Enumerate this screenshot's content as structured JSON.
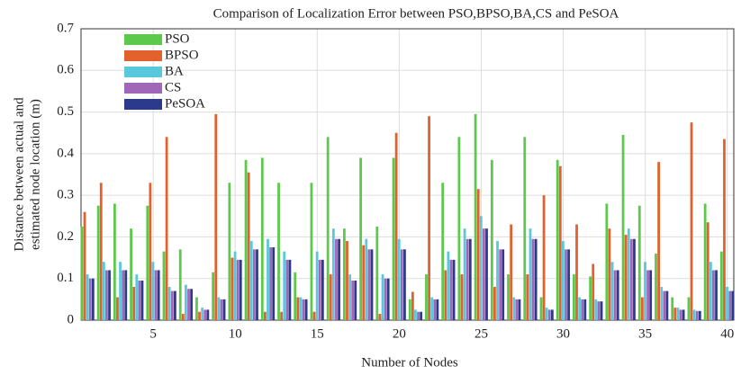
{
  "chart_data": {
    "type": "bar",
    "title": "Comparison of Localization Error between PSO,BPSO,BA,CS and PeSOA",
    "xlabel": "Number of Nodes",
    "ylabel": [
      "Distance between actual and",
      "estimated node location (m)"
    ],
    "x": [
      1,
      2,
      3,
      4,
      5,
      6,
      7,
      8,
      9,
      10,
      11,
      12,
      13,
      14,
      15,
      16,
      17,
      18,
      19,
      20,
      21,
      22,
      23,
      24,
      25,
      26,
      27,
      28,
      29,
      30,
      31,
      32,
      33,
      34,
      35,
      36,
      37,
      38,
      39,
      40
    ],
    "xlim": [
      0.6,
      40.4
    ],
    "xticks": [
      5,
      10,
      15,
      20,
      25,
      30,
      35,
      40
    ],
    "ylim": [
      0,
      0.7
    ],
    "yticks": [
      0,
      0.1,
      0.2,
      0.3,
      0.4,
      0.5,
      0.6,
      0.7
    ],
    "grid": true,
    "legend": "upper left",
    "series": [
      {
        "name": "PSO",
        "color": "#5cc84c",
        "values": [
          0.225,
          0.275,
          0.28,
          0.22,
          0.275,
          0.165,
          0.17,
          0.055,
          0.115,
          0.33,
          0.385,
          0.39,
          0.33,
          0.115,
          0.33,
          0.44,
          0.22,
          0.39,
          0.225,
          0.39,
          0.05,
          0.11,
          0.33,
          0.44,
          0.495,
          0.385,
          0.11,
          0.44,
          0.055,
          0.385,
          0.11,
          0.105,
          0.28,
          0.445,
          0.275,
          0.16,
          0.055,
          0.055,
          0.28,
          0.165
        ]
      },
      {
        "name": "BPSO",
        "color": "#e2612c",
        "values": [
          0.26,
          0.33,
          0.055,
          0.08,
          0.33,
          0.44,
          0.015,
          0.02,
          0.495,
          0.15,
          0.355,
          0.02,
          0.02,
          0.055,
          0.02,
          0.11,
          0.19,
          0.18,
          0.015,
          0.45,
          0.068,
          0.49,
          0.12,
          0.11,
          0.315,
          0.08,
          0.23,
          0.11,
          0.3,
          0.37,
          0.23,
          0.135,
          0.22,
          0.205,
          0.055,
          0.38,
          0.03,
          0.475,
          0.235,
          0.435
        ]
      },
      {
        "name": "BA",
        "color": "#5ac8dc",
        "values": [
          0.11,
          0.14,
          0.14,
          0.11,
          0.14,
          0.08,
          0.085,
          0.03,
          0.055,
          0.165,
          0.19,
          0.195,
          0.165,
          0.055,
          0.165,
          0.22,
          0.11,
          0.195,
          0.11,
          0.195,
          0.025,
          0.055,
          0.165,
          0.22,
          0.25,
          0.19,
          0.055,
          0.22,
          0.03,
          0.19,
          0.055,
          0.05,
          0.14,
          0.22,
          0.14,
          0.08,
          0.03,
          0.025,
          0.14,
          0.08
        ]
      },
      {
        "name": "CS",
        "color": "#a066b8",
        "values": [
          0.1,
          0.12,
          0.12,
          0.095,
          0.12,
          0.07,
          0.075,
          0.025,
          0.05,
          0.145,
          0.17,
          0.175,
          0.145,
          0.05,
          0.145,
          0.195,
          0.095,
          0.17,
          0.1,
          0.17,
          0.02,
          0.05,
          0.145,
          0.195,
          0.22,
          0.17,
          0.05,
          0.195,
          0.025,
          0.17,
          0.05,
          0.045,
          0.12,
          0.195,
          0.12,
          0.07,
          0.025,
          0.022,
          0.12,
          0.07
        ]
      },
      {
        "name": "PeSOA",
        "color": "#2b3a8a",
        "values": [
          0.1,
          0.12,
          0.12,
          0.095,
          0.12,
          0.07,
          0.075,
          0.025,
          0.05,
          0.145,
          0.17,
          0.175,
          0.145,
          0.05,
          0.145,
          0.195,
          0.095,
          0.17,
          0.1,
          0.17,
          0.02,
          0.05,
          0.145,
          0.195,
          0.22,
          0.17,
          0.05,
          0.195,
          0.025,
          0.17,
          0.05,
          0.045,
          0.12,
          0.195,
          0.12,
          0.07,
          0.025,
          0.022,
          0.12,
          0.07
        ]
      }
    ]
  }
}
